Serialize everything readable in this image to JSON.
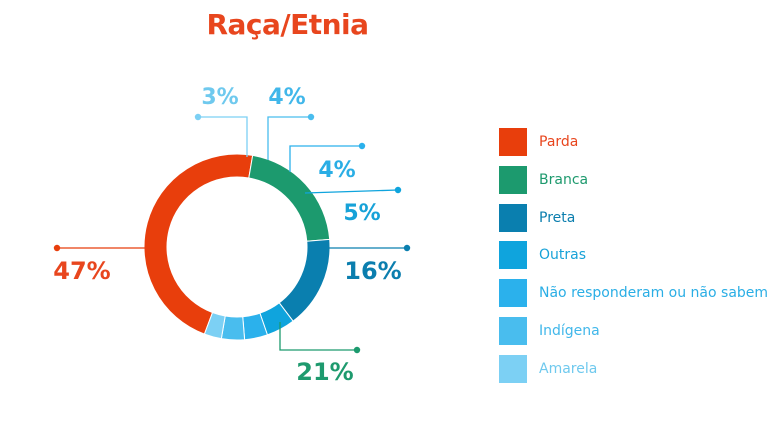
{
  "chart_data": {
    "type": "pie",
    "variant": "donut",
    "title": "Raça/Etnia",
    "title_color": "#E8461E",
    "legend_position": "right",
    "series": [
      {
        "name": "Parda",
        "value": 47,
        "label": "47%",
        "color": "#E83E0C",
        "label_color": "#E8461E"
      },
      {
        "name": "Branca",
        "value": 21,
        "label": "21%",
        "color": "#1C9A6E",
        "label_color": "#1E9A6E"
      },
      {
        "name": "Preta",
        "value": 16,
        "label": "16%",
        "color": "#0A7FAF",
        "label_color": "#0B7EAE"
      },
      {
        "name": "Outras",
        "value": 5,
        "label": "5%",
        "color": "#0FA4DD",
        "label_color": "#17A2D8"
      },
      {
        "name": "Não responderam ou não sabem",
        "value": 4,
        "label": "4%",
        "color": "#2BB1EC",
        "label_color": "#2AAEE5"
      },
      {
        "name": "Indígena",
        "value": 4,
        "label": "4%",
        "color": "#49BDEE",
        "label_color": "#41B7EA"
      },
      {
        "name": "Amarela",
        "value": 3,
        "label": "3%",
        "color": "#7CD0F4",
        "label_color": "#6FC9EE"
      }
    ]
  }
}
